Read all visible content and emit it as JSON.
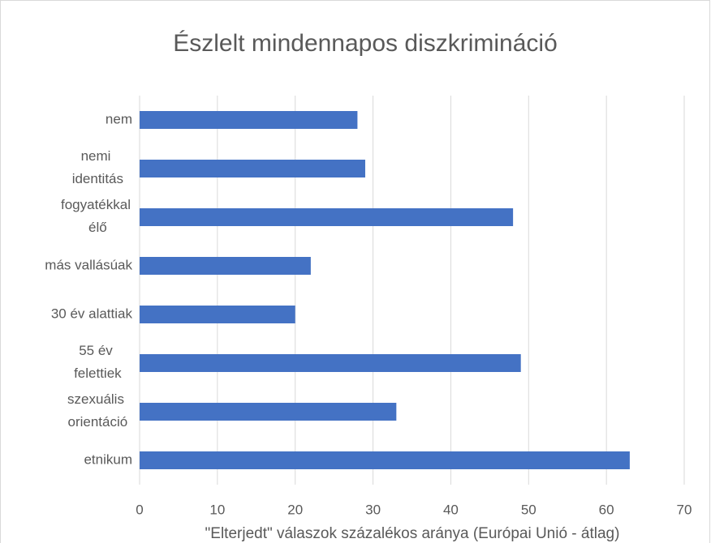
{
  "chart_data": {
    "type": "bar",
    "orientation": "horizontal",
    "title": "Észlelt mindennapos diszkrimináció",
    "x_label": "\"Elterjedt\" válaszok százalékos aránya (Európai Unió - átlag)",
    "categories": [
      "nem",
      "nemi\nidentitás",
      "fogyatékkal\nélő",
      "más vallásúak",
      "30 év alattiak",
      "55 év\nfelettiek",
      "szexuális\norientáció",
      "etnikum"
    ],
    "values": [
      28,
      29,
      48,
      22,
      20,
      49,
      33,
      63
    ],
    "color": "#4472c4",
    "xlim": [
      0,
      70
    ],
    "xticks": [
      0,
      10,
      20,
      30,
      40,
      50,
      60,
      70
    ],
    "grid": true
  }
}
